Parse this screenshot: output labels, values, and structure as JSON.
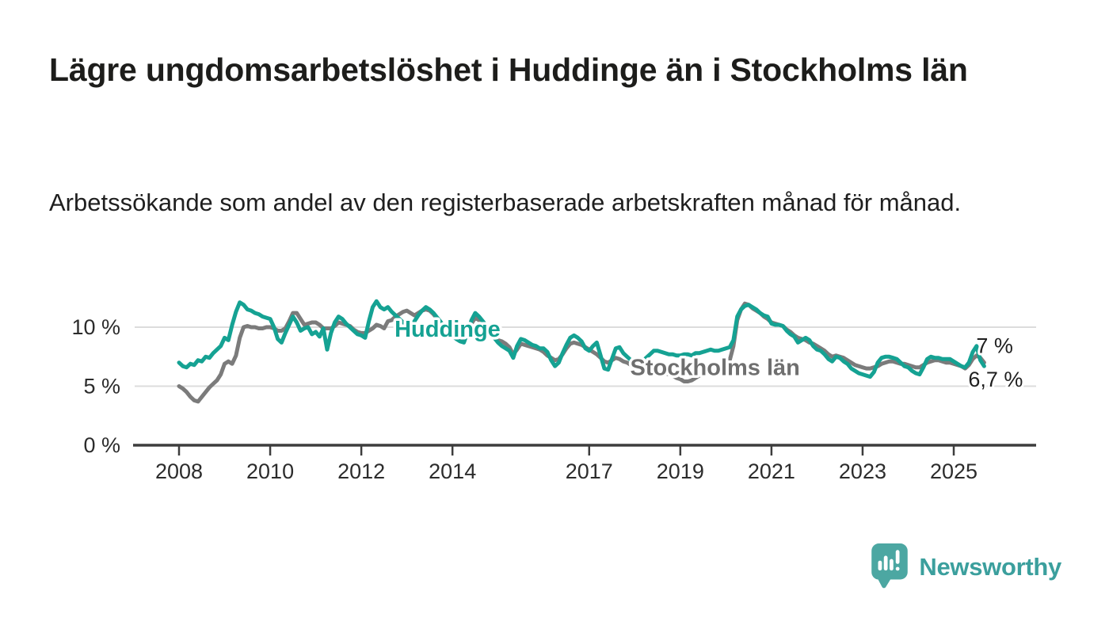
{
  "title": "Lägre ungdomsarbetslöshet i Huddinge än i Stockholms län",
  "subtitle": "Arbetssökande som andel av den registerbaserade arbetskraften månad för månad.",
  "branding": {
    "logo_text": "Newsworthy",
    "logo_icon": "bar-chart-speech-bubble-icon",
    "icon_color": "#4ca7a2",
    "text_color": "#3b9f9d"
  },
  "chart_data": {
    "type": "line",
    "x_start_year": 2008,
    "x_step_months": 1,
    "x_tick_years": [
      2008,
      2010,
      2012,
      2014,
      2017,
      2019,
      2021,
      2023,
      2025
    ],
    "x_tick_labels": [
      "2008",
      "2010",
      "2012",
      "2014",
      "2017",
      "2019",
      "2021",
      "2023",
      "2025"
    ],
    "y_ticks": [
      {
        "value": 0,
        "label": "0 %"
      },
      {
        "value": 5,
        "label": "5 %"
      },
      {
        "value": 10,
        "label": "10 %"
      }
    ],
    "ylim": [
      0,
      12.5
    ],
    "grid": "horizontal",
    "unit": "percent",
    "series": [
      {
        "name": "Stockholms län",
        "color": "#7b7b7b",
        "label_color": "#6f6f6f",
        "end_label": "7 %",
        "end_label_position": "above",
        "values": [
          5.0,
          4.8,
          4.5,
          4.1,
          3.8,
          3.7,
          4.1,
          4.5,
          4.9,
          5.2,
          5.5,
          6.0,
          6.9,
          7.1,
          6.9,
          7.6,
          9.1,
          10.0,
          10.1,
          10.0,
          10.0,
          9.9,
          9.9,
          10.0,
          10.0,
          9.9,
          9.7,
          9.7,
          9.9,
          10.5,
          11.2,
          11.2,
          10.7,
          10.2,
          10.3,
          10.4,
          10.4,
          10.2,
          9.9,
          9.9,
          9.9,
          10.1,
          10.4,
          10.3,
          10.2,
          10.1,
          9.8,
          9.6,
          9.5,
          9.5,
          9.7,
          9.9,
          10.2,
          10.1,
          9.9,
          10.5,
          10.6,
          10.9,
          11.1,
          11.3,
          11.4,
          11.2,
          11.0,
          11.2,
          11.4,
          11.5,
          11.4,
          11.1,
          10.7,
          10.3,
          10.0,
          9.7,
          9.5,
          9.2,
          9.0,
          8.9,
          9.5,
          10.3,
          10.8,
          10.6,
          10.3,
          10.0,
          9.6,
          9.2,
          8.9,
          8.8,
          8.6,
          8.3,
          7.7,
          8.1,
          8.6,
          8.5,
          8.4,
          8.3,
          8.2,
          8.1,
          7.9,
          7.6,
          7.4,
          7.2,
          7.3,
          7.7,
          8.2,
          8.6,
          8.7,
          8.6,
          8.5,
          8.3,
          8.1,
          7.9,
          7.7,
          7.4,
          7.1,
          7.0,
          7.2,
          7.4,
          7.3,
          7.1,
          7.0,
          6.8,
          6.6,
          6.5,
          6.3,
          6.2,
          6.1,
          6.2,
          6.3,
          6.2,
          6.1,
          6.0,
          5.9,
          5.7,
          5.6,
          5.4,
          5.4,
          5.5,
          5.7,
          5.9,
          6.1,
          6.2,
          6.4,
          6.6,
          6.8,
          6.9,
          7.0,
          7.2,
          8.4,
          10.6,
          11.5,
          12.0,
          11.9,
          11.6,
          11.4,
          11.2,
          10.9,
          10.7,
          10.4,
          10.3,
          10.2,
          10.1,
          9.8,
          9.6,
          9.3,
          9.1,
          9.0,
          8.9,
          8.7,
          8.6,
          8.4,
          8.2,
          8.0,
          7.7,
          7.5,
          7.6,
          7.5,
          7.4,
          7.2,
          7.0,
          6.8,
          6.7,
          6.6,
          6.5,
          6.5,
          6.6,
          6.7,
          6.9,
          7.0,
          7.1,
          7.1,
          7.0,
          6.9,
          6.9,
          6.8,
          6.7,
          6.6,
          6.6,
          6.8,
          7.0,
          7.1,
          7.2,
          7.2,
          7.1,
          7.0,
          7.0,
          6.9,
          6.8,
          6.7,
          6.5,
          6.8,
          7.3,
          7.6,
          7.4,
          7.0
        ]
      },
      {
        "name": "Huddinge",
        "color": "#15a293",
        "label_color": "#15a293",
        "end_label": "6,7 %",
        "end_label_position": "below",
        "values": [
          7.0,
          6.7,
          6.6,
          6.9,
          6.8,
          7.2,
          7.1,
          7.5,
          7.4,
          7.8,
          8.1,
          8.4,
          9.1,
          8.9,
          10.2,
          11.3,
          12.1,
          11.9,
          11.5,
          11.4,
          11.2,
          11.1,
          10.9,
          10.8,
          10.7,
          10.0,
          9.0,
          8.7,
          9.5,
          10.2,
          10.9,
          10.4,
          9.7,
          9.9,
          10.0,
          9.4,
          9.6,
          9.2,
          9.9,
          8.1,
          9.5,
          10.4,
          10.9,
          10.7,
          10.3,
          10.0,
          9.7,
          9.4,
          9.3,
          9.1,
          10.5,
          11.7,
          12.2,
          11.7,
          11.5,
          11.7,
          11.3,
          11.0,
          10.7,
          10.4,
          10.2,
          10.0,
          10.5,
          11.0,
          11.4,
          11.7,
          11.5,
          11.2,
          10.8,
          10.4,
          10.0,
          9.6,
          9.3,
          9.0,
          8.8,
          8.7,
          9.6,
          10.6,
          11.2,
          10.9,
          10.5,
          10.1,
          9.7,
          9.1,
          8.7,
          8.4,
          8.2,
          8.0,
          7.4,
          8.4,
          9.0,
          8.9,
          8.7,
          8.5,
          8.4,
          8.2,
          8.2,
          7.9,
          7.2,
          6.7,
          7.0,
          7.8,
          8.5,
          9.1,
          9.3,
          9.1,
          8.8,
          8.2,
          8.0,
          8.4,
          8.7,
          7.6,
          6.5,
          6.4,
          7.3,
          8.2,
          8.3,
          7.8,
          7.5,
          7.2,
          6.9,
          6.7,
          7.1,
          7.4,
          7.7,
          8.0,
          8.0,
          7.9,
          7.8,
          7.7,
          7.7,
          7.6,
          7.6,
          7.7,
          7.7,
          7.6,
          7.8,
          7.8,
          7.9,
          8.0,
          8.1,
          8.0,
          8.0,
          8.1,
          8.2,
          8.3,
          8.9,
          10.9,
          11.5,
          11.8,
          11.9,
          11.7,
          11.5,
          11.2,
          11.0,
          10.9,
          10.3,
          10.2,
          10.2,
          10.1,
          9.7,
          9.4,
          9.2,
          8.7,
          8.9,
          9.1,
          8.9,
          8.4,
          8.1,
          8.0,
          7.7,
          7.3,
          7.1,
          7.5,
          7.4,
          7.1,
          6.9,
          6.5,
          6.3,
          6.1,
          6.0,
          5.9,
          5.8,
          6.2,
          7.0,
          7.4,
          7.5,
          7.5,
          7.4,
          7.3,
          7.0,
          6.7,
          6.6,
          6.3,
          6.1,
          6.0,
          6.6,
          7.3,
          7.5,
          7.4,
          7.4,
          7.3,
          7.3,
          7.3,
          7.1,
          6.9,
          6.7,
          6.6,
          7.0,
          7.9,
          8.4,
          7.2,
          6.7
        ]
      }
    ],
    "series_annotations": [
      {
        "text": "Huddinge",
        "x": 2012.73,
        "y": 9.85,
        "color": "#15a293"
      },
      {
        "text": "Stockholms län",
        "x": 2017.9,
        "y": 6.6,
        "color": "#6f6f6f"
      }
    ]
  }
}
